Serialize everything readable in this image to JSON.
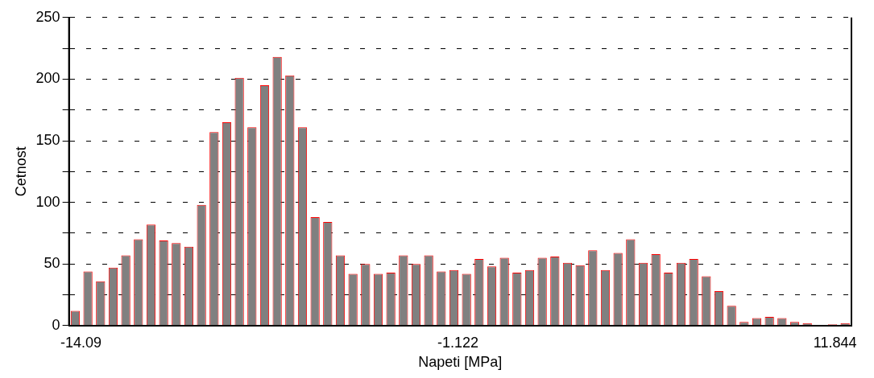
{
  "chart_data": {
    "type": "histogram",
    "xlabel": "Napeti [MPa]",
    "ylabel": "Cetnost",
    "color": "#808080",
    "bins": [
      -14.5,
      -14.066,
      -13.632,
      -13.198,
      -12.764,
      -12.33,
      -11.896,
      -11.462,
      -11.028,
      -10.594,
      -10.16,
      -9.726,
      -9.292,
      -8.858,
      -8.424,
      -7.99,
      -7.556,
      -7.122,
      -6.688,
      -6.254,
      -5.82,
      -5.386,
      -4.952,
      -4.518,
      -4.084,
      -3.65,
      -3.216,
      -2.782,
      -2.348,
      -1.914,
      -1.48,
      -1.046,
      -0.612,
      -0.178,
      0.256,
      0.69,
      1.124,
      1.558,
      1.992,
      2.426,
      2.86,
      3.294,
      3.728,
      4.162,
      4.596,
      5.03,
      5.464,
      5.898,
      6.332,
      6.766,
      7.2,
      7.634,
      8.068,
      8.502,
      8.936,
      9.37,
      9.804,
      10.238,
      10.672,
      11.106,
      11.54,
      11.974,
      12.408
    ],
    "values": [
      12,
      44,
      36,
      47,
      57,
      70,
      82,
      69,
      67,
      64,
      98,
      157,
      165,
      201,
      161,
      195,
      218,
      203,
      161,
      88,
      84,
      57,
      42,
      50,
      42,
      43,
      57,
      50,
      57,
      44,
      45,
      42,
      54,
      48,
      55,
      43,
      45,
      55,
      56,
      51,
      49,
      61,
      45,
      59,
      70,
      51,
      58,
      43,
      51,
      54,
      40,
      28,
      16,
      3,
      6,
      7,
      6,
      3,
      2,
      0,
      1,
      2
    ],
    "xlim": [
      -14.5,
      12.408
    ],
    "xticks": [
      -14.09,
      -1.122,
      11.844
    ],
    "ylim": [
      0,
      250
    ],
    "yticks": [
      0,
      {
        "value": 25,
        "label": null
      },
      50,
      {
        "value": 75,
        "label": null
      },
      100,
      {
        "value": 125,
        "label": null
      },
      150,
      {
        "value": 175,
        "label": null
      },
      200,
      {
        "value": 225,
        "label": null
      },
      250
    ],
    "grid": "y"
  }
}
